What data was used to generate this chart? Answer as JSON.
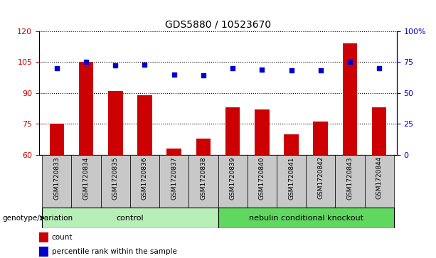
{
  "title": "GDS5880 / 10523670",
  "samples": [
    "GSM1720833",
    "GSM1720834",
    "GSM1720835",
    "GSM1720836",
    "GSM1720837",
    "GSM1720838",
    "GSM1720839",
    "GSM1720840",
    "GSM1720841",
    "GSM1720842",
    "GSM1720843",
    "GSM1720844"
  ],
  "counts": [
    75,
    105,
    91,
    89,
    63,
    68,
    83,
    82,
    70,
    76,
    114,
    83
  ],
  "percentiles": [
    70,
    75,
    72,
    73,
    65,
    64,
    70,
    69,
    68,
    68,
    75,
    70
  ],
  "ylim_left": [
    60,
    120
  ],
  "ylim_right": [
    0,
    100
  ],
  "yticks_left": [
    60,
    75,
    90,
    105,
    120
  ],
  "yticks_right": [
    0,
    25,
    50,
    75,
    100
  ],
  "ytick_labels_right": [
    "0",
    "25",
    "50",
    "75",
    "100%"
  ],
  "groups": [
    {
      "label": "control",
      "indices": [
        0,
        1,
        2,
        3,
        4,
        5
      ],
      "color": "#b8eeb8"
    },
    {
      "label": "nebulin conditional knockout",
      "indices": [
        6,
        7,
        8,
        9,
        10,
        11
      ],
      "color": "#60d860"
    }
  ],
  "bar_color": "#cc0000",
  "dot_color": "#0000cc",
  "bar_width": 0.5,
  "tick_bg_color": "#c8c8c8",
  "legend_count_label": "count",
  "legend_pct_label": "percentile rank within the sample",
  "genotype_label": "genotype/variation",
  "ax_left_color": "#cc0000",
  "ax_right_color": "#0000cc"
}
